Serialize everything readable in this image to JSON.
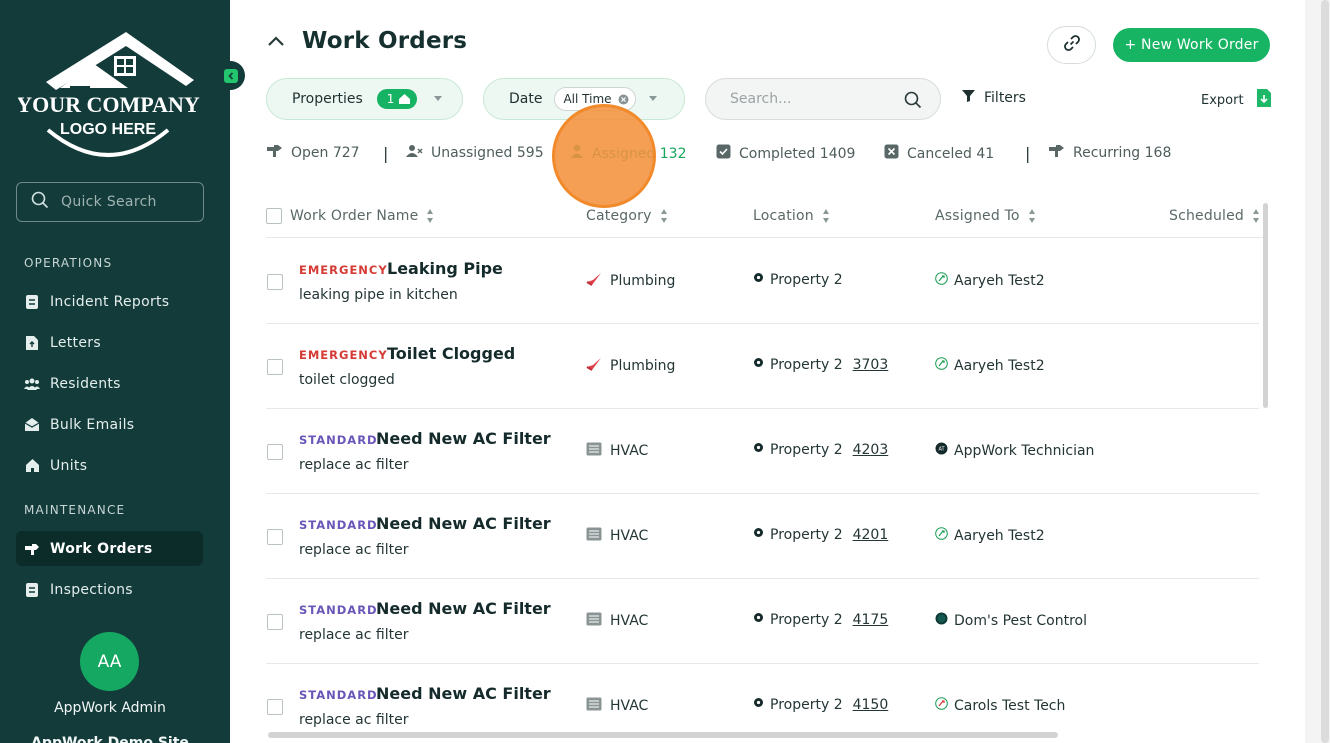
{
  "sidebar": {
    "logo": {
      "line1": "YOUR COMPANY",
      "line2": "LOGO HERE"
    },
    "quick_search_placeholder": "Quick Search",
    "sections": [
      {
        "label": "OPERATIONS",
        "items": [
          {
            "label": "Incident Reports",
            "icon": "incident-report-icon"
          },
          {
            "label": "Letters",
            "icon": "letter-icon"
          },
          {
            "label": "Residents",
            "icon": "residents-icon"
          },
          {
            "label": "Bulk Emails",
            "icon": "bulk-email-icon"
          },
          {
            "label": "Units",
            "icon": "units-icon"
          }
        ]
      },
      {
        "label": "MAINTENANCE",
        "items": [
          {
            "label": "Work Orders",
            "icon": "work-order-icon",
            "active": true
          },
          {
            "label": "Inspections",
            "icon": "inspection-icon"
          }
        ]
      }
    ],
    "user": {
      "initials": "AA",
      "name": "AppWork Admin",
      "site": "AppWork Demo Site"
    }
  },
  "header": {
    "title": "Work Orders",
    "new_button": "+ New Work Order",
    "link_icon": "link-icon"
  },
  "filters": {
    "properties_label": "Properties",
    "properties_count": "1",
    "date_label": "Date",
    "date_value": "All Time",
    "search_placeholder": "Search...",
    "filters_label": "Filters",
    "export_label": "Export"
  },
  "status_tabs": [
    {
      "label": "Open 727",
      "icon": "open-icon"
    },
    {
      "label": "Unassigned 595",
      "icon": "unassigned-icon"
    },
    {
      "label": "Assigned 132",
      "icon": "assigned-icon",
      "active": true
    },
    {
      "label": "Completed 1409",
      "icon": "completed-icon"
    },
    {
      "label": "Canceled 41",
      "icon": "canceled-icon"
    },
    {
      "label": "Recurring 168",
      "icon": "recurring-icon"
    }
  ],
  "table": {
    "columns": [
      "Work Order Name",
      "Category",
      "Location",
      "Assigned To",
      "Scheduled"
    ],
    "rows": [
      {
        "priority": "EMERGENCY",
        "name": "Leaking Pipe",
        "description": "leaking pipe in kitchen",
        "category": "Plumbing",
        "property": "Property 2",
        "unit": "",
        "assigned_to": "Aaryeh Test2"
      },
      {
        "priority": "EMERGENCY",
        "name": "Toilet Clogged",
        "description": "toilet clogged",
        "category": "Plumbing",
        "property": "Property 2",
        "unit": "3703",
        "assigned_to": "Aaryeh Test2"
      },
      {
        "priority": "STANDARD",
        "name": "Need New AC Filter",
        "description": "replace ac filter",
        "category": "HVAC",
        "property": "Property 2",
        "unit": "4203",
        "assigned_to": "AppWork Technician"
      },
      {
        "priority": "STANDARD",
        "name": "Need New AC Filter",
        "description": "replace ac filter",
        "category": "HVAC",
        "property": "Property 2",
        "unit": "4201",
        "assigned_to": "Aaryeh Test2"
      },
      {
        "priority": "STANDARD",
        "name": "Need New AC Filter",
        "description": "replace ac filter",
        "category": "HVAC",
        "property": "Property 2",
        "unit": "4175",
        "assigned_to": "Dom's Pest Control"
      },
      {
        "priority": "STANDARD",
        "name": "Need New AC Filter",
        "description": "replace ac filter",
        "category": "HVAC",
        "property": "Property 2",
        "unit": "4150",
        "assigned_to": "Carols Test Tech"
      }
    ]
  },
  "colors": {
    "sidebar": "#123b39",
    "accent": "#16b463",
    "emergency": "#d53a34",
    "standard": "#6a55b8",
    "highlight": "#f4923e"
  }
}
